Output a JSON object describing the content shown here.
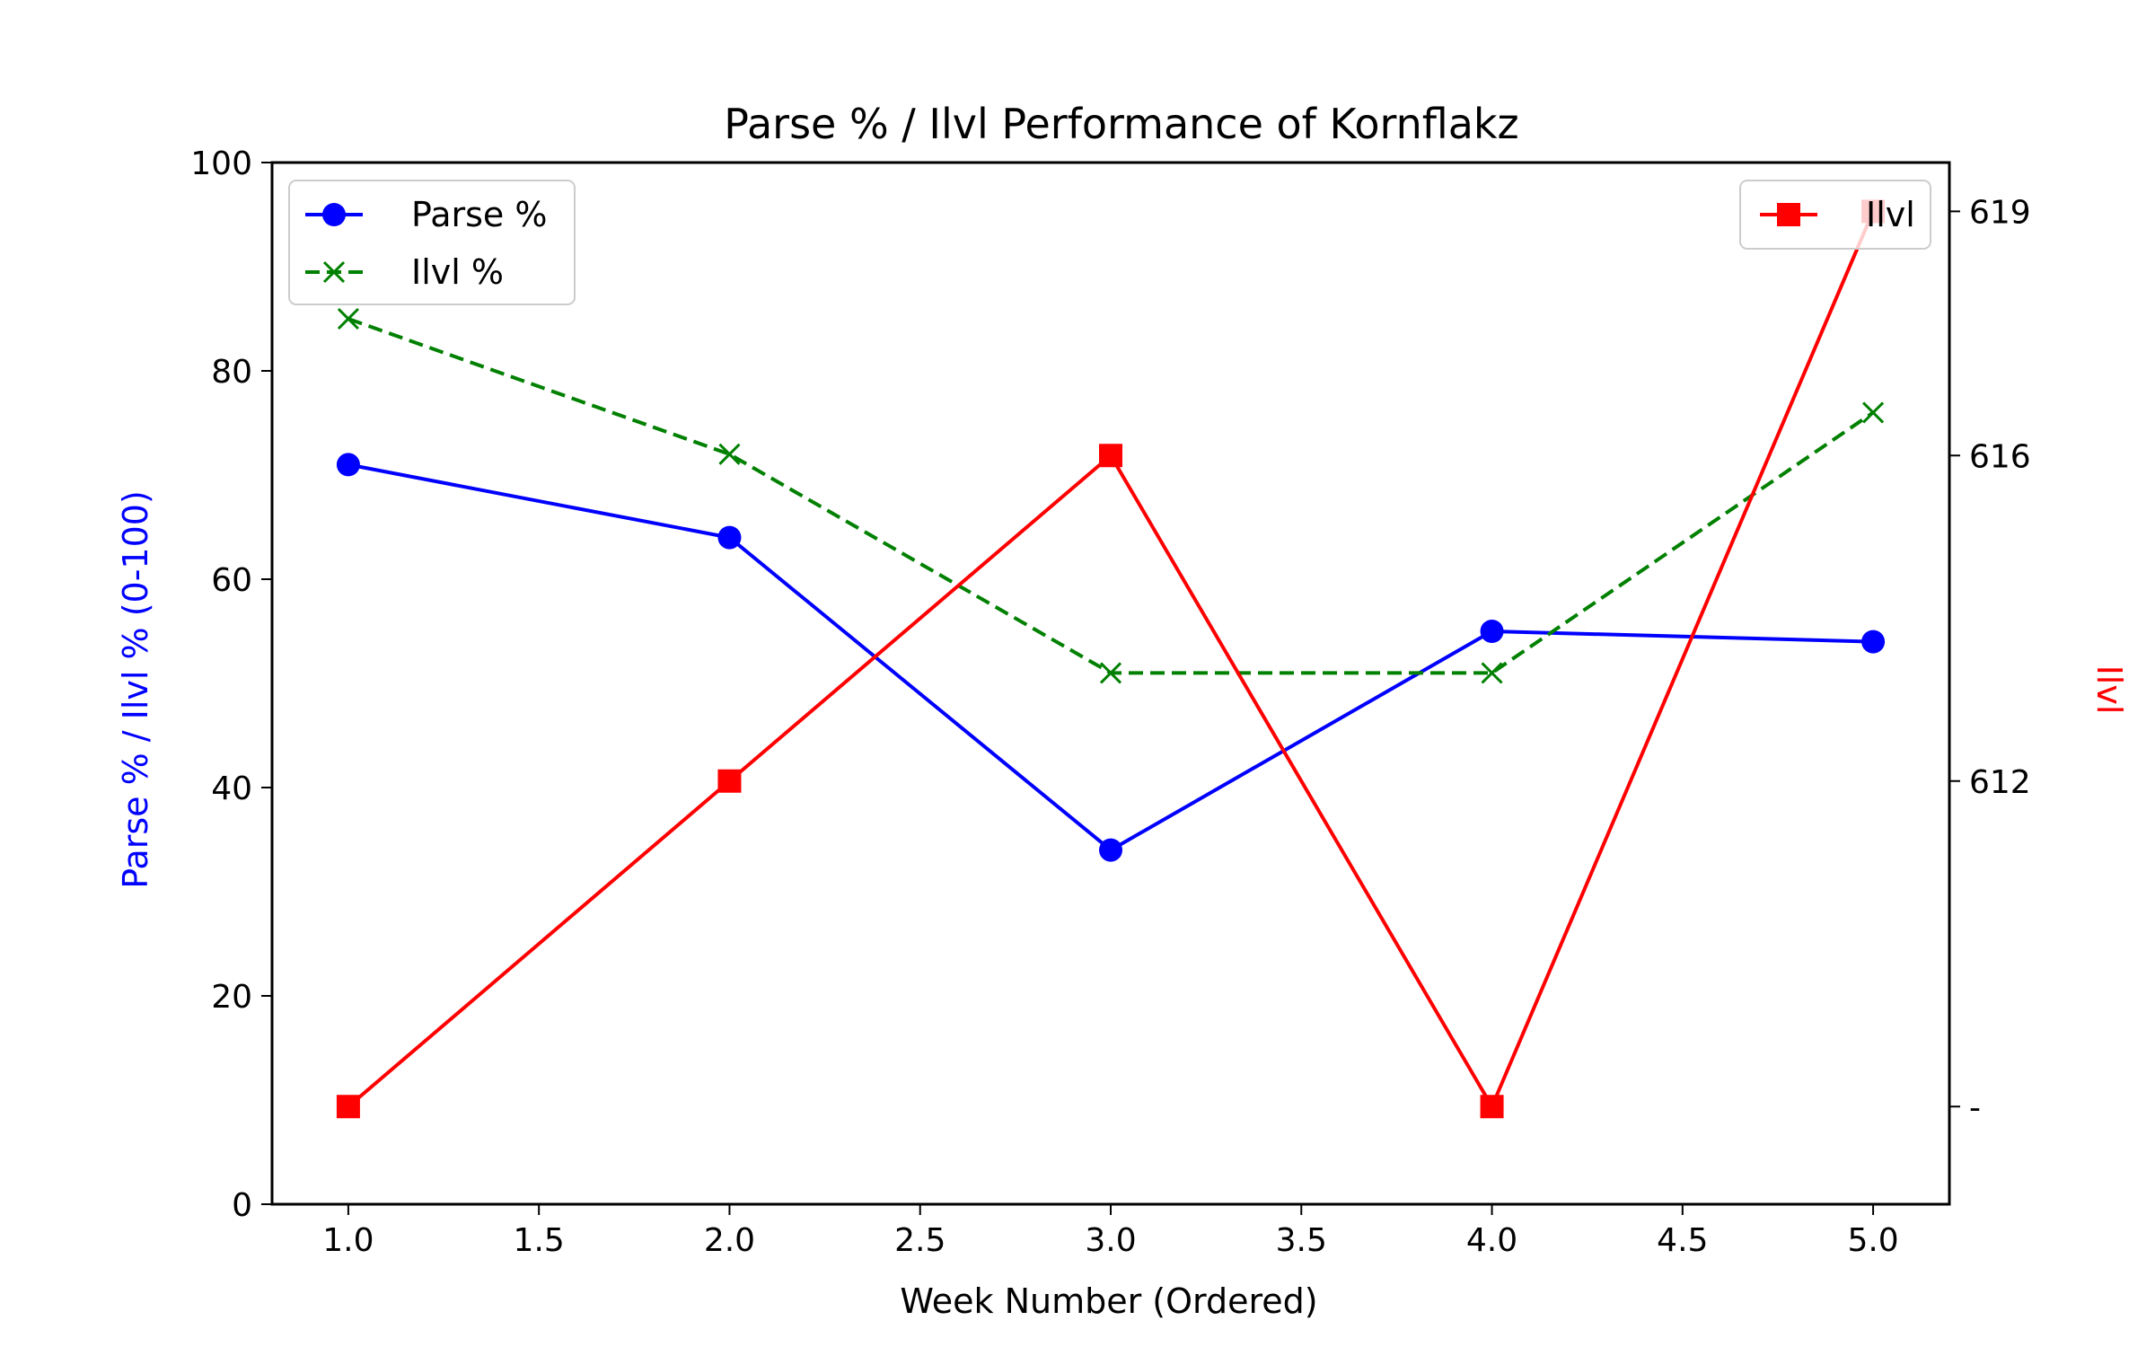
{
  "chart_data": {
    "type": "line",
    "title": "Parse % / Ilvl Performance of Kornflakz",
    "xlabel": "Week Number (Ordered)",
    "ylabel": "Parse % / Ilvl % (0-100)",
    "ylabel_color": "#0000ff",
    "y2label": "Ilvl",
    "y2label_color": "#ff0000",
    "xlim": [
      0.8,
      5.2
    ],
    "ylim": [
      0,
      100
    ],
    "y2lim": [
      606.8,
      619.6
    ],
    "x_ticks": [
      1.0,
      1.5,
      2.0,
      2.5,
      3.0,
      3.5,
      4.0,
      4.5,
      5.0
    ],
    "x_tick_labels": [
      "1.0",
      "1.5",
      "2.0",
      "2.5",
      "3.0",
      "3.5",
      "4.0",
      "4.5",
      "5.0"
    ],
    "y_ticks": [
      0,
      20,
      40,
      60,
      80,
      100
    ],
    "y_tick_labels": [
      "0",
      "20",
      "40",
      "60",
      "80",
      "100"
    ],
    "y2_ticks": [
      608,
      612,
      616,
      619
    ],
    "y2_tick_labels": [
      "-",
      "612",
      "616",
      "619"
    ],
    "grid": false,
    "series_left": [
      {
        "name": "Parse %",
        "color": "#0000ff",
        "marker": "circle",
        "dash": "solid",
        "x": [
          1,
          2,
          3,
          4,
          5
        ],
        "values": [
          71,
          64,
          34,
          55,
          54
        ]
      },
      {
        "name": "Ilvl %",
        "color": "#008000",
        "marker": "x",
        "dash": "dashed",
        "x": [
          1,
          2,
          3,
          4,
          5
        ],
        "values": [
          85,
          72,
          51,
          51,
          76
        ]
      }
    ],
    "series_right": [
      {
        "name": "Ilvl",
        "color": "#ff0000",
        "marker": "square",
        "dash": "solid",
        "x": [
          1,
          2,
          3,
          4,
          5
        ],
        "values": [
          608,
          612,
          616,
          608,
          619
        ]
      }
    ],
    "legend_left_placement": "upper-left",
    "legend_right_placement": "upper-right"
  }
}
